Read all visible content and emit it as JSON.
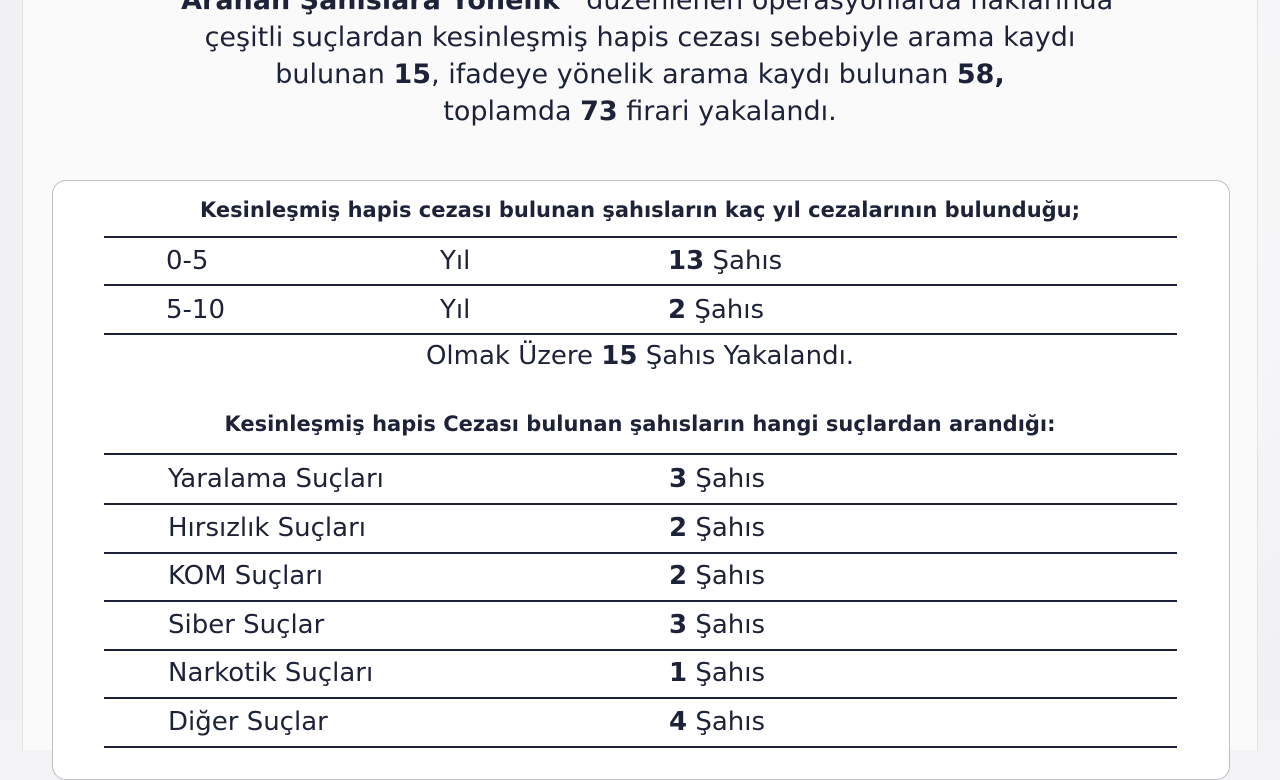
{
  "intro": {
    "l1_bold": "“Aranan Şahıslara Yönelik”",
    "l1": " düzenlenen operasyonlarda haklarında",
    "l2": "çeşitli suçlardan kesinleşmiş hapis cezası sebebiyle arama kaydı",
    "l3a": "bulunan ",
    "l3b": "15",
    "l3c": ", ifadeye yönelik arama kaydı bulunan ",
    "l3d": "58,",
    "l4a": "toplamda ",
    "l4b": "73",
    "l4c": " firari yakalandı."
  },
  "table1": {
    "title": "Kesinleşmiş hapis cezası bulunan şahısların kaç yıl cezalarının bulunduğu;",
    "rows": [
      {
        "range": "0-5",
        "unit": "Yıl",
        "count": "13",
        "label": " Şahıs"
      },
      {
        "range": "5-10",
        "unit": "Yıl",
        "count": "2",
        "label": " Şahıs"
      }
    ],
    "summary_a": "Olmak Üzere ",
    "summary_b": "15",
    "summary_c": " Şahıs Yakalandı."
  },
  "table2": {
    "title": "Kesinleşmiş hapis Cezası bulunan şahısların hangi suçlardan arandığı:",
    "rows": [
      {
        "crime": "Yaralama Suçları",
        "count": "3",
        "label": " Şahıs"
      },
      {
        "crime": "Hırsızlık Suçları",
        "count": "2",
        "label": " Şahıs"
      },
      {
        "crime": "KOM Suçları",
        "count": "2",
        "label": " Şahıs"
      },
      {
        "crime": "Siber Suçlar",
        "count": "3",
        "label": " Şahıs"
      },
      {
        "crime": "Narkotik Suçları",
        "count": "1",
        "label": " Şahıs"
      },
      {
        "crime": "Diğer Suçlar",
        "count": "4",
        "label": " Şahıs"
      }
    ]
  }
}
